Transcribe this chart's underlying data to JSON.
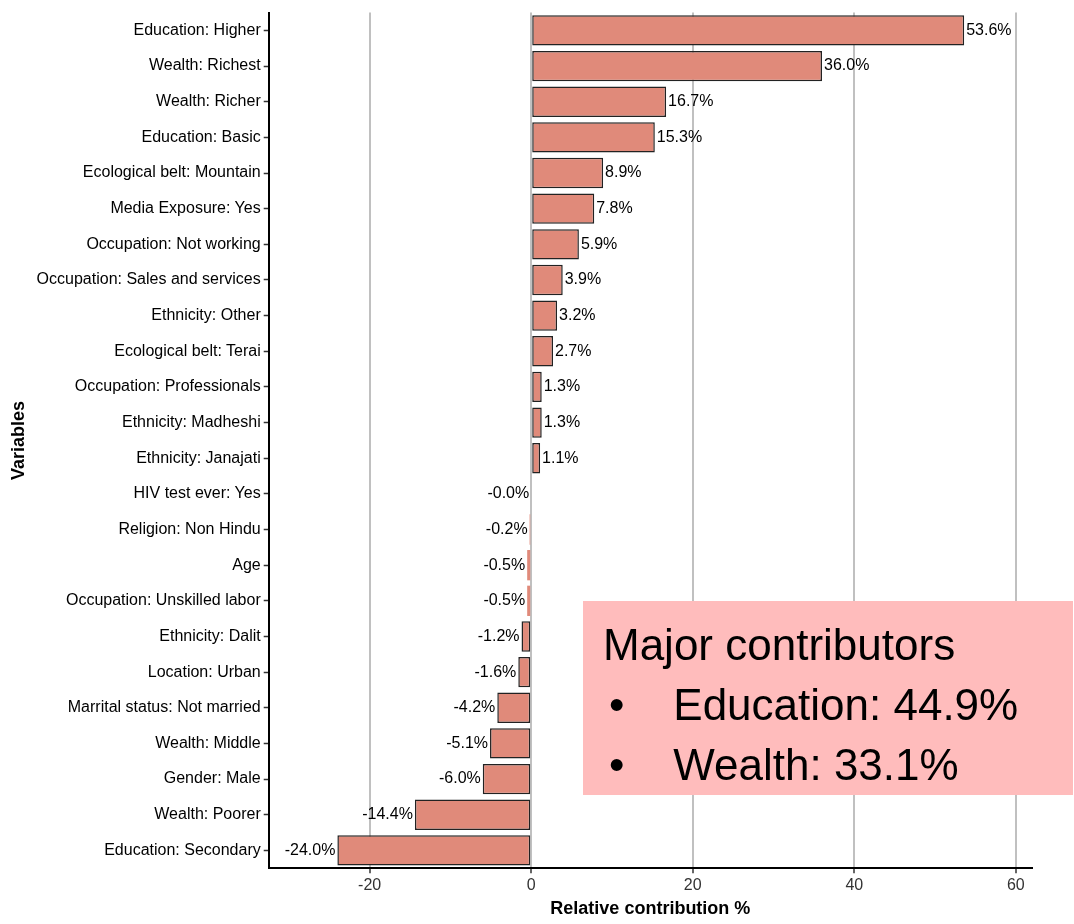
{
  "chart_data": {
    "type": "bar",
    "orientation": "horizontal",
    "xlabel": "Relative contribution %",
    "ylabel": "Variables",
    "categories": [
      "Education: Higher",
      "Wealth: Richest",
      "Wealth: Richer",
      "Education: Basic",
      "Ecological belt: Mountain",
      "Media Exposure: Yes",
      "Occupation: Not working",
      "Occupation: Sales and services",
      "Ethnicity: Other",
      "Ecological belt: Terai",
      "Occupation: Professionals",
      "Ethnicity: Madheshi",
      "Ethnicity: Janajati",
      "HIV test ever: Yes",
      "Religion: Non Hindu",
      "Age",
      "Occupation: Unskilled labor",
      "Ethnicity: Dalit",
      "Location: Urban",
      "Marrital status: Not married",
      "Wealth: Middle",
      "Gender: Male",
      "Wealth: Poorer",
      "Education: Secondary"
    ],
    "values": [
      53.6,
      36.0,
      16.7,
      15.3,
      8.9,
      7.8,
      5.9,
      3.9,
      3.2,
      2.7,
      1.3,
      1.3,
      1.1,
      -0.0,
      -0.2,
      -0.5,
      -0.5,
      -1.2,
      -1.6,
      -4.2,
      -5.1,
      -6.0,
      -14.4,
      -24.0
    ],
    "value_labels": [
      "53.6%",
      "36.0%",
      "16.7%",
      "15.3%",
      "8.9%",
      "7.8%",
      "5.9%",
      "3.9%",
      "3.2%",
      "2.7%",
      "1.3%",
      "1.3%",
      "1.1%",
      "-0.0%",
      "-0.2%",
      "-0.5%",
      "-0.5%",
      "-1.2%",
      "-1.6%",
      "-4.2%",
      "-5.1%",
      "-6.0%",
      "-14.4%",
      "-24.0%"
    ],
    "color": "#e08a7a",
    "xlim": [
      -32.5,
      62
    ],
    "xticks": [
      -20,
      0,
      20,
      40,
      60
    ],
    "grid": "x",
    "legend": false,
    "annotations": [
      "Major contributors",
      "•    Education: 44.9%",
      "•    Wealth: 33.1%"
    ]
  }
}
